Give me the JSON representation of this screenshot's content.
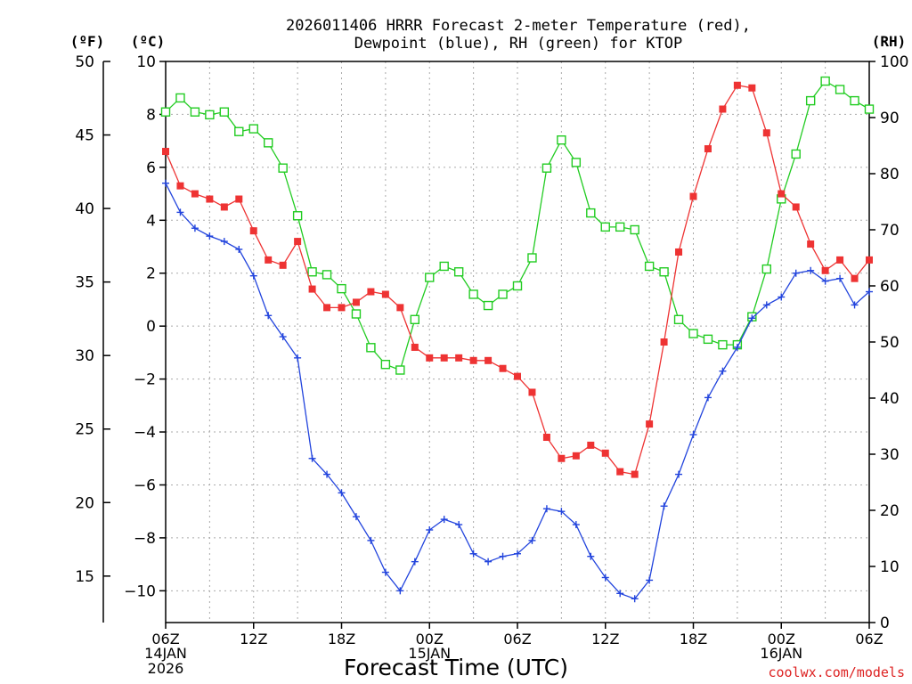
{
  "chart_data": {
    "type": "line",
    "title_line1": "2026011406 HRRR Forecast 2-meter Temperature (red),",
    "title_line2": "Dewpoint (blue), RH (green) for KTOP",
    "xlabel": "Forecast Time (UTC)",
    "left_outer_unit": "(ºF)",
    "left_inner_unit": "(ºC)",
    "right_unit": "(RH)",
    "credit": "coolwx.com/models",
    "x_tick_labels": [
      "06Z",
      "12Z",
      "18Z",
      "00Z",
      "06Z",
      "12Z",
      "18Z",
      "00Z",
      "06Z"
    ],
    "x_date_labels": [
      {
        "hour": "06Z",
        "date": "14JAN",
        "year": "2026"
      },
      {
        "hour": "00Z",
        "date": "15JAN",
        "year": ""
      },
      {
        "hour": "00Z",
        "date": "16JAN",
        "year": ""
      }
    ],
    "x_hours": [
      0,
      1,
      2,
      3,
      4,
      5,
      6,
      7,
      8,
      9,
      10,
      11,
      12,
      13,
      14,
      15,
      16,
      17,
      18,
      19,
      20,
      21,
      22,
      23,
      24,
      25,
      26,
      27,
      28,
      29,
      30,
      31,
      32,
      33,
      34,
      35,
      36,
      37,
      38,
      39,
      40,
      41,
      42,
      43,
      44,
      45,
      46,
      47,
      48
    ],
    "xlim_hours": [
      0,
      48
    ],
    "celsius_ticks": [
      "10",
      "8",
      "6",
      "4",
      "2",
      "0",
      "−2",
      "−4",
      "−6",
      "−8",
      "−10"
    ],
    "celsius_lim": [
      -11.2,
      10
    ],
    "fahrenheit_ticks": [
      "50",
      "45",
      "40",
      "35",
      "30",
      "25",
      "20",
      "15"
    ],
    "rh_ticks": [
      "100",
      "90",
      "80",
      "70",
      "60",
      "50",
      "40",
      "30",
      "20",
      "10",
      "0"
    ],
    "rh_lim": [
      0,
      100
    ],
    "grid": true,
    "series": [
      {
        "name": "Temperature",
        "color": "#ee3333",
        "axis": "celsius",
        "values": [
          6.6,
          5.3,
          5.0,
          4.8,
          4.5,
          4.8,
          3.6,
          2.5,
          2.3,
          3.2,
          1.4,
          0.7,
          0.7,
          0.9,
          1.3,
          1.2,
          0.7,
          -0.8,
          -1.2,
          -1.2,
          -1.2,
          -1.3,
          -1.3,
          -1.6,
          -1.9,
          -2.5,
          -4.2,
          -5.0,
          -4.9,
          -4.5,
          -4.8,
          -5.5,
          -5.6,
          -3.7,
          -0.6,
          2.8,
          4.9,
          6.7,
          8.2,
          9.1,
          9.0,
          7.3,
          5.0,
          4.5,
          3.1,
          2.1,
          2.5,
          1.8,
          2.5
        ]
      },
      {
        "name": "Dewpoint",
        "color": "#2244dd",
        "axis": "celsius",
        "values": [
          5.4,
          4.3,
          3.7,
          3.4,
          3.2,
          2.9,
          1.9,
          0.4,
          -0.4,
          -1.2,
          -5.0,
          -5.6,
          -6.3,
          -7.2,
          -8.1,
          -9.3,
          -10.0,
          -8.9,
          -7.7,
          -7.3,
          -7.5,
          -8.6,
          -8.9,
          -8.7,
          -8.6,
          -8.1,
          -6.9,
          -7.0,
          -7.5,
          -8.7,
          -9.5,
          -10.1,
          -10.3,
          -9.6,
          -6.8,
          -5.6,
          -4.1,
          -2.7,
          -1.7,
          -0.8,
          0.3,
          0.8,
          1.1,
          2.0,
          2.1,
          1.7,
          1.8,
          0.8,
          1.3
        ]
      },
      {
        "name": "RH",
        "color": "#22cc22",
        "axis": "rh",
        "values": [
          91.0,
          93.5,
          91.0,
          90.5,
          91.0,
          87.5,
          88.0,
          85.5,
          81.0,
          72.5,
          62.5,
          62.0,
          59.5,
          55.0,
          49.0,
          46.0,
          45.0,
          54.0,
          61.5,
          63.5,
          62.5,
          58.5,
          56.5,
          58.5,
          60.0,
          65.0,
          81.0,
          86.0,
          82.0,
          73.0,
          70.5,
          70.5,
          70.0,
          63.5,
          62.5,
          54.0,
          51.5,
          50.5,
          49.5,
          49.5,
          54.5,
          63.0,
          75.5,
          83.5,
          93.0,
          96.5,
          95.0,
          93.0,
          91.5
        ]
      }
    ]
  }
}
